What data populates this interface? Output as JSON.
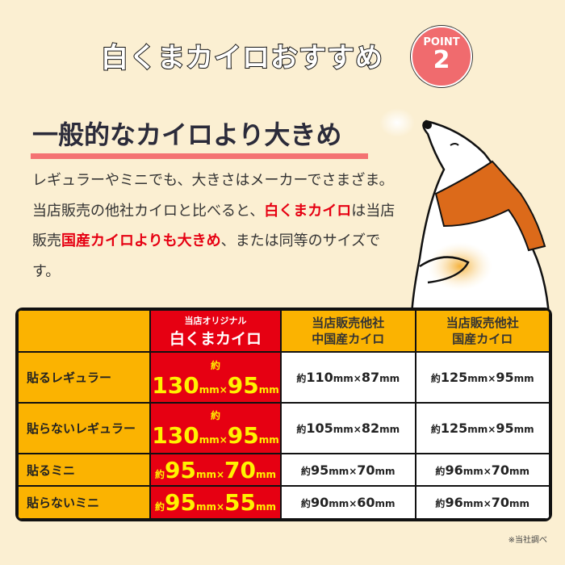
{
  "header": {
    "title": "白くまカイロおすすめ",
    "badge_label": "POINT",
    "badge_number": "2",
    "badge_color": "#f06b6e"
  },
  "section": {
    "heading": "一般的なカイロより大きめ",
    "body": [
      {
        "text": "レギュラーやミニでも、大きさはメーカーでさまざま。当店販売の他社カイロと比べると、",
        "red": false
      },
      {
        "text": "白くまカイロ",
        "red": true
      },
      {
        "text": "は当店販売",
        "red": false
      },
      {
        "text": "国産カイロよりも大きめ",
        "red": true
      },
      {
        "text": "、または同等のサイズです。",
        "red": false
      }
    ]
  },
  "table": {
    "headers": [
      {
        "sub": "当店オリジナル",
        "main": "白くまカイロ"
      },
      {
        "line1": "当店販売他社",
        "line2": "中国産カイロ"
      },
      {
        "line1": "当店販売他社",
        "line2": "国産カイロ"
      }
    ],
    "rows": [
      {
        "label": "貼るレギュラー",
        "cells": [
          {
            "w": "130",
            "h": "95"
          },
          {
            "w": "110",
            "h": "87"
          },
          {
            "w": "125",
            "h": "95"
          }
        ]
      },
      {
        "label": "貼らないレギュラー",
        "cells": [
          {
            "w": "130",
            "h": "95"
          },
          {
            "w": "105",
            "h": "82"
          },
          {
            "w": "125",
            "h": "95"
          }
        ]
      },
      {
        "label": "貼るミニ",
        "cells": [
          {
            "w": "95",
            "h": "70"
          },
          {
            "w": "95",
            "h": "70"
          },
          {
            "w": "96",
            "h": "70"
          }
        ]
      },
      {
        "label": "貼らないミニ",
        "cells": [
          {
            "w": "95",
            "h": "55"
          },
          {
            "w": "90",
            "h": "60"
          },
          {
            "w": "96",
            "h": "70"
          }
        ]
      }
    ],
    "approx": "約",
    "unit": "mm",
    "times": "×",
    "colors": {
      "highlight": "#e60012",
      "label": "#fbb301",
      "highlight_text": "#fff200"
    }
  },
  "footnote": "※当社調べ"
}
